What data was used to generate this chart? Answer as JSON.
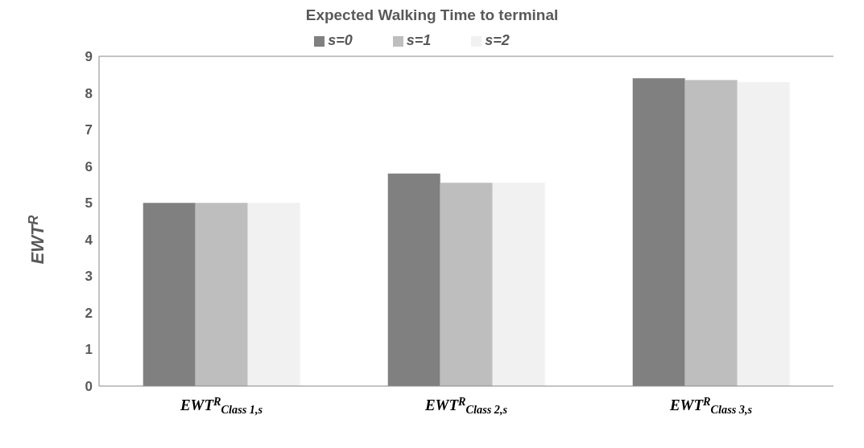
{
  "chart_data": {
    "type": "bar",
    "title": "Expected Walking Time to terminal",
    "ylabel": "EWT$^{R}$",
    "categories": [
      "EWT$^{R}$$_{Class 1,s}$",
      "EWT$^{R}$$_{Class 2,s}$",
      "EWT$^{R}$$_{Class 3,s}$"
    ],
    "series": [
      {
        "name": "s=0",
        "color": "#808080",
        "values": [
          5.0,
          5.8,
          8.4
        ]
      },
      {
        "name": "s=1",
        "color": "#bebebe",
        "values": [
          5.0,
          5.55,
          8.35
        ]
      },
      {
        "name": "s=2",
        "color": "#f1f1f1",
        "values": [
          5.0,
          5.55,
          8.3
        ]
      }
    ],
    "ylim": [
      0,
      9
    ],
    "yticks": [
      0,
      1,
      2,
      3,
      4,
      5,
      6,
      7,
      8,
      9
    ],
    "legend": "top"
  }
}
